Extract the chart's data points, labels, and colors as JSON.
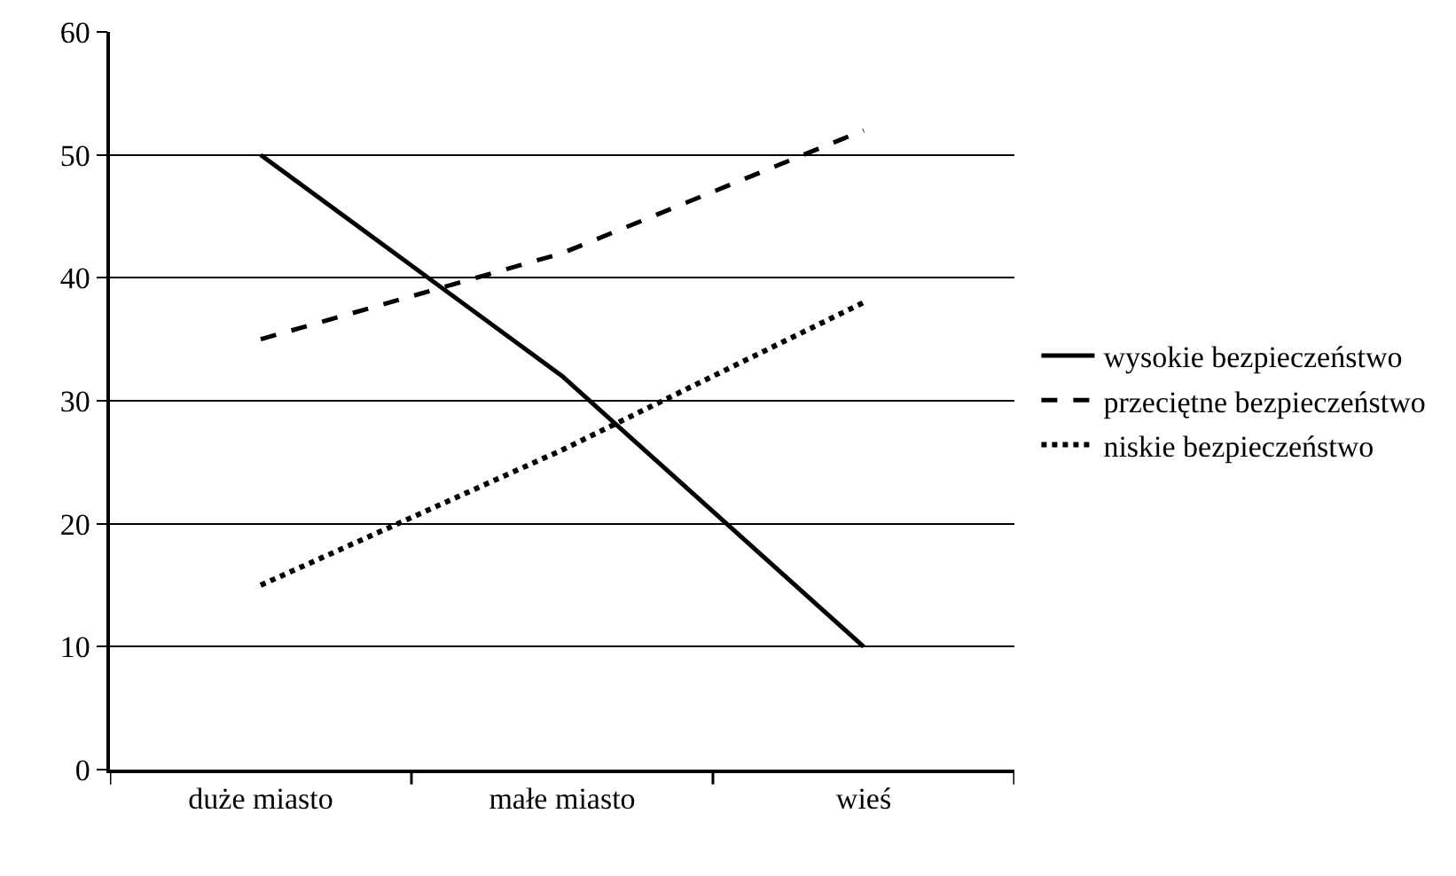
{
  "chart_data": {
    "type": "line",
    "categories": [
      "duże miasto",
      "małe miasto",
      "wieś"
    ],
    "series": [
      {
        "name": "wysokie bezpieczeństwo",
        "color": "#000000",
        "line_style": "solid",
        "values": [
          50,
          32,
          10
        ]
      },
      {
        "name": "przeciętne bezpieczeństwo",
        "color": "#000000",
        "line_style": "dashed",
        "values": [
          35,
          42,
          52
        ]
      },
      {
        "name": "niskie bezpieczeństwo",
        "color": "#000000",
        "line_style": "dotted",
        "values": [
          15,
          26,
          38
        ]
      }
    ],
    "ylim": [
      0,
      60
    ],
    "yticks": [
      0,
      10,
      20,
      30,
      40,
      50,
      60
    ],
    "grid": "y",
    "legend": "right",
    "marker": "none"
  }
}
